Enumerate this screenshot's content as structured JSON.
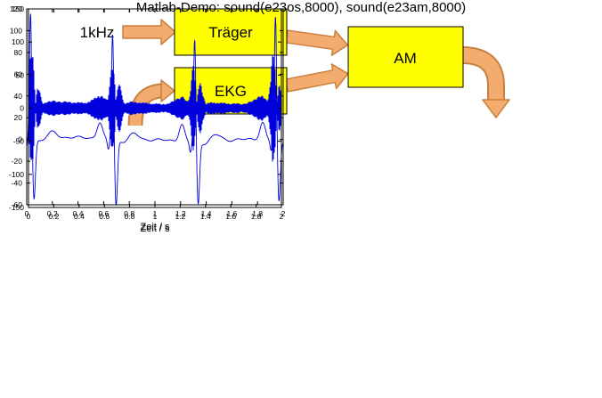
{
  "diagram": {
    "input_label": "1kHz",
    "blocks": [
      {
        "label": "Träger"
      },
      {
        "label": "EKG"
      },
      {
        "label": "AM"
      }
    ]
  },
  "colors": {
    "block_fill": "#FFFF00",
    "block_border": "#000000",
    "arrow_fill": "#F4AC6E",
    "arrow_border": "#C9803F",
    "signal_line": "#0000DD"
  },
  "caption": "Matlab-Demo: sound(e23os,8000), sound(e23am,8000)",
  "chart_data": [
    {
      "id": "ekg",
      "type": "line",
      "title": "",
      "xlabel": "Zeit / s",
      "ylabel": "",
      "xlim": [
        0,
        2
      ],
      "ylim": [
        -60,
        120
      ],
      "xticks": [
        0,
        0.2,
        0.4,
        0.6,
        0.8,
        1,
        1.2,
        1.4,
        1.6,
        1.8,
        2
      ],
      "xtick_labels": [
        "0",
        "0.2",
        "0.4",
        "0.6",
        "0.8",
        "1",
        "1.2",
        "1.4",
        "1.6",
        "1.8",
        "2"
      ],
      "yticks": [
        -60,
        -40,
        -20,
        0,
        20,
        40,
        60,
        80,
        100,
        120
      ],
      "ytick_labels": [
        "-60",
        "-40",
        "-20",
        "0",
        "20",
        "40",
        "60",
        "80",
        "100",
        "120"
      ],
      "grid": false,
      "legend": null,
      "line_color": "#0000DD",
      "model": {
        "beats_s": [
          0.03,
          0.67,
          1.31,
          1.94
        ],
        "r_peaks": [
          118,
          100,
          96,
          115
        ],
        "s_dips": [
          -54,
          -60,
          -57,
          -56
        ],
        "p_wave_amp": 16,
        "q_dip": -9,
        "t_wave_amp": 10
      }
    },
    {
      "id": "am",
      "type": "line",
      "title": "",
      "xlabel": "Zeit / s",
      "ylabel": "",
      "xlim": [
        0,
        2
      ],
      "ylim": [
        -150,
        150
      ],
      "xticks": [
        0,
        0.2,
        0.4,
        0.6,
        0.8,
        1,
        1.2,
        1.4,
        1.6,
        1.8,
        2
      ],
      "xtick_labels": [
        "0",
        "0.2",
        "0.4",
        "0.6",
        "0.8",
        "1",
        "1.2",
        "1.4",
        "1.6",
        "1.8",
        "2"
      ],
      "yticks": [
        -150,
        -100,
        -50,
        0,
        50,
        100,
        150
      ],
      "ytick_labels": [
        "-150",
        "-100",
        "-50",
        "0",
        "50",
        "100",
        "150"
      ],
      "grid": false,
      "legend": null,
      "line_color": "#0000DD",
      "model": {
        "envelope_source": "ekg",
        "envelope_gain": 0.95,
        "baseline_amp": 6,
        "envelope_widen": 2.5
      }
    }
  ]
}
